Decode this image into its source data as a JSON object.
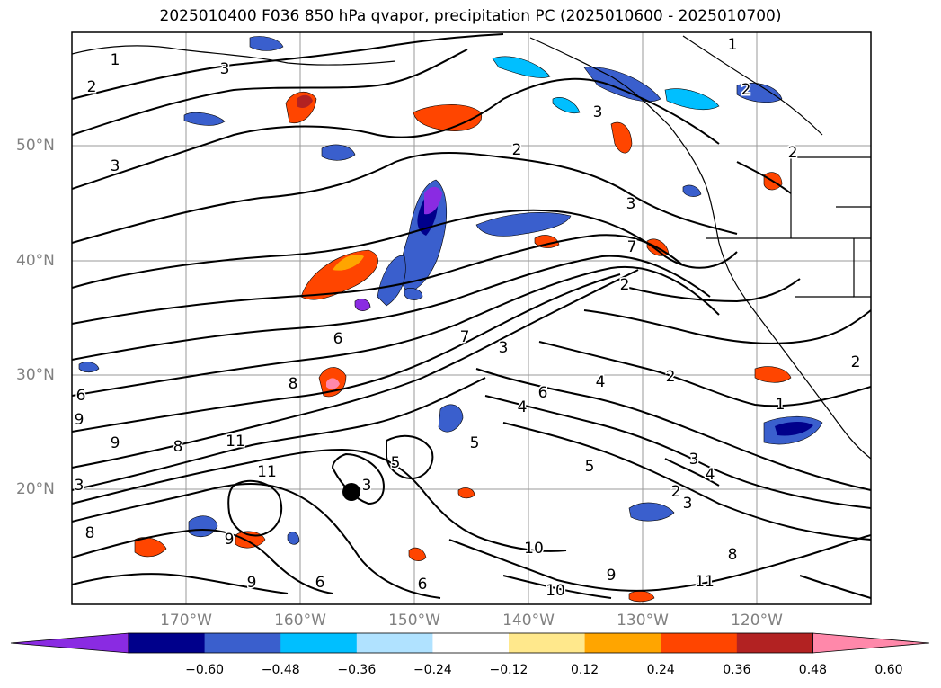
{
  "title": "2025010400 F036 850 hPa qvapor, precipitation PC (2025010600 - 2025010700)",
  "lat_labels": [
    "50°N",
    "40°N",
    "30°N",
    "20°N"
  ],
  "lon_labels": [
    "170°W",
    "160°W",
    "150°W",
    "140°W",
    "130°W",
    "120°W"
  ],
  "colorbar": {
    "ticks": [
      "−0.60",
      "−0.48",
      "−0.36",
      "−0.24",
      "−0.12",
      "0.12",
      "0.24",
      "0.36",
      "0.48",
      "0.60"
    ],
    "colors": [
      "#8a2be2",
      "#00008b",
      "#3a5fcd",
      "#00bfff",
      "#b0e2ff",
      "#ffffff",
      "#ffe88c",
      "#ffa500",
      "#ff4500",
      "#b22222",
      "#ff88aa"
    ]
  },
  "contour_labels": [
    "1",
    "2",
    "3",
    "2",
    "1",
    "2",
    "3",
    "3",
    "2",
    "3",
    "3",
    "7",
    "2",
    "6",
    "9",
    "7",
    "8",
    "6",
    "4",
    "4",
    "2",
    "1",
    "2",
    "6",
    "9",
    "8",
    "11",
    "11",
    "5",
    "5",
    "9",
    "3",
    "3",
    "4",
    "5",
    "3",
    "2",
    "3",
    "8",
    "9",
    "6",
    "6",
    "10",
    "10",
    "8",
    "11",
    "9"
  ]
}
